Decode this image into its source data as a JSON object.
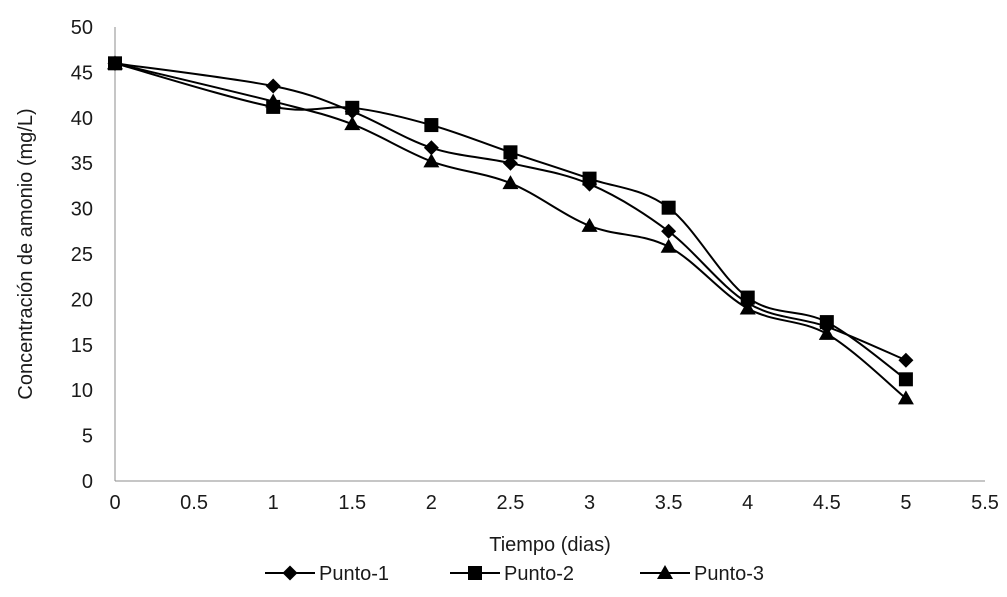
{
  "chart_data": {
    "type": "line",
    "xlabel": "Tiempo (dias)",
    "ylabel": "Concentración de amonio (mg/L)",
    "xlim": [
      0,
      5.5
    ],
    "ylim": [
      0,
      50
    ],
    "x_ticks": [
      0,
      0.5,
      1,
      1.5,
      2,
      2.5,
      3,
      3.5,
      4,
      4.5,
      5,
      5.5
    ],
    "x_tick_labels": [
      "0",
      "0.5",
      "1",
      "1.5",
      "2",
      "2.5",
      "3",
      "3.5",
      "4",
      "4.5",
      "5",
      "5.5"
    ],
    "y_ticks": [
      0,
      5,
      10,
      15,
      20,
      25,
      30,
      35,
      40,
      45,
      50
    ],
    "y_tick_labels": [
      "0",
      "5",
      "10",
      "15",
      "20",
      "25",
      "30",
      "35",
      "40",
      "45",
      "50"
    ],
    "grid": false,
    "smooth": true,
    "legend_position": "bottom",
    "x": [
      0,
      1,
      1.5,
      2,
      2.5,
      3,
      3.5,
      4,
      4.5,
      5
    ],
    "series": [
      {
        "name": "Punto-1",
        "marker": "diamond",
        "color": "#000000",
        "values": [
          46.0,
          43.5,
          40.7,
          36.7,
          35.0,
          32.7,
          27.5,
          19.6,
          17.0,
          13.3
        ]
      },
      {
        "name": "Punto-2",
        "marker": "square",
        "color": "#000000",
        "values": [
          46.0,
          41.2,
          41.1,
          39.2,
          36.2,
          33.3,
          30.1,
          20.2,
          17.5,
          11.2
        ]
      },
      {
        "name": "Punto-3",
        "marker": "triangle",
        "color": "#000000",
        "values": [
          46.0,
          41.8,
          39.3,
          35.2,
          32.8,
          28.1,
          25.8,
          19.0,
          16.2,
          9.1
        ]
      }
    ]
  }
}
